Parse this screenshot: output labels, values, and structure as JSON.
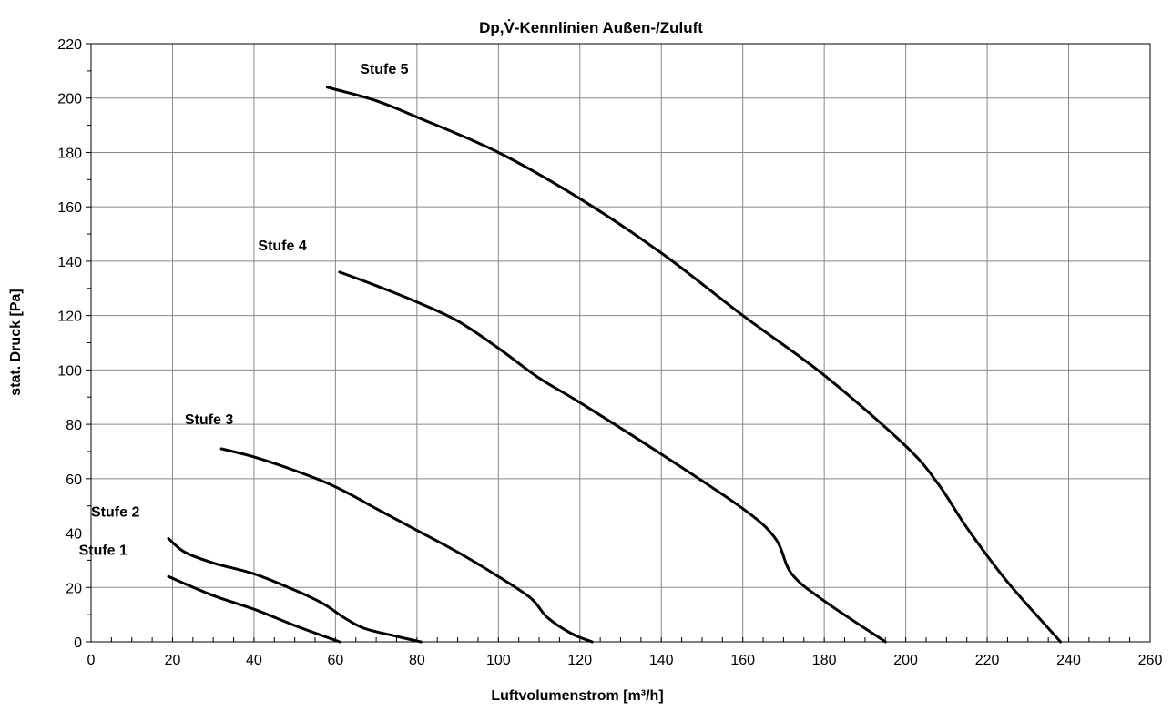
{
  "chart_data": {
    "type": "line",
    "title": "Dp,V̇-Kennlinien Außen-/Zuluft",
    "xlabel": "Luftvolumenstrom [m³/h]",
    "ylabel": "stat. Druck [Pa]",
    "xlim": [
      0,
      260
    ],
    "ylim": [
      0,
      220
    ],
    "x_ticks": [
      0,
      20,
      40,
      60,
      80,
      100,
      120,
      140,
      160,
      180,
      200,
      220,
      240,
      260
    ],
    "y_ticks": [
      0,
      20,
      40,
      60,
      80,
      100,
      120,
      140,
      160,
      180,
      200,
      220
    ],
    "grid": true,
    "legend": "none",
    "series": [
      {
        "name": "Stufe 1",
        "points": [
          [
            19,
            24
          ],
          [
            30,
            17
          ],
          [
            40,
            12
          ],
          [
            50,
            6
          ],
          [
            61,
            0
          ]
        ]
      },
      {
        "name": "Stufe 2",
        "points": [
          [
            19,
            38
          ],
          [
            23,
            33
          ],
          [
            30,
            29
          ],
          [
            40,
            25
          ],
          [
            50,
            19
          ],
          [
            57,
            14
          ],
          [
            62,
            9
          ],
          [
            67,
            5
          ],
          [
            75,
            2
          ],
          [
            81,
            0
          ]
        ]
      },
      {
        "name": "Stufe 3",
        "points": [
          [
            32,
            71
          ],
          [
            40,
            68
          ],
          [
            50,
            63
          ],
          [
            60,
            57
          ],
          [
            70,
            49
          ],
          [
            80,
            41
          ],
          [
            90,
            33
          ],
          [
            100,
            24
          ],
          [
            108,
            16
          ],
          [
            112,
            9
          ],
          [
            118,
            3
          ],
          [
            123,
            0
          ]
        ]
      },
      {
        "name": "Stufe 4",
        "points": [
          [
            61,
            136
          ],
          [
            70,
            131
          ],
          [
            80,
            125
          ],
          [
            90,
            118
          ],
          [
            100,
            108
          ],
          [
            110,
            97
          ],
          [
            120,
            88
          ],
          [
            140,
            69
          ],
          [
            160,
            49
          ],
          [
            168,
            38
          ],
          [
            172,
            25
          ],
          [
            180,
            15
          ],
          [
            195,
            0
          ]
        ]
      },
      {
        "name": "Stufe 5",
        "points": [
          [
            58,
            204
          ],
          [
            70,
            199
          ],
          [
            80,
            193
          ],
          [
            100,
            180
          ],
          [
            120,
            163
          ],
          [
            140,
            143
          ],
          [
            160,
            120
          ],
          [
            180,
            98
          ],
          [
            200,
            72
          ],
          [
            208,
            58
          ],
          [
            215,
            42
          ],
          [
            225,
            22
          ],
          [
            238,
            0
          ]
        ]
      }
    ]
  }
}
